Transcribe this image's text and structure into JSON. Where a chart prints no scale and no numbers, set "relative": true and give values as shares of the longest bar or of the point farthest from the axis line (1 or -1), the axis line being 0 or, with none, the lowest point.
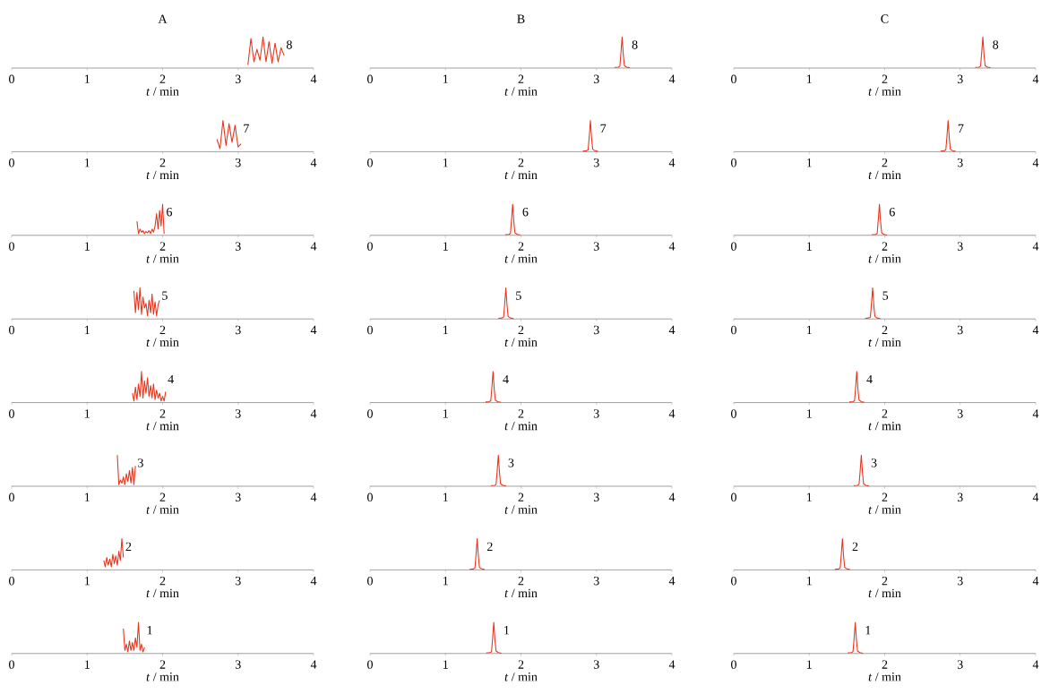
{
  "chart_data": [
    {
      "type": "line",
      "title": "A",
      "xlabel": "*t* / min",
      "relative": true,
      "color": "#e8341c",
      "xlim": [
        0,
        4
      ],
      "xticks": [
        0,
        1,
        2,
        3,
        4
      ],
      "x": [
        3.13,
        3.17,
        3.21,
        3.25,
        3.29,
        3.33,
        3.37,
        3.41,
        3.45,
        3.49,
        3.53,
        3.57,
        3.61
      ],
      "values": [
        0.1,
        0.95,
        0.2,
        0.6,
        0.25,
        1.0,
        0.2,
        0.85,
        0.15,
        0.8,
        0.2,
        0.65,
        0.4
      ],
      "annotations": [
        "8"
      ]
    },
    {
      "type": "line",
      "title": "B",
      "xlabel": "*t* / min",
      "relative": true,
      "color": "#e8341c",
      "xlim": [
        0,
        4
      ],
      "xticks": [
        0,
        1,
        2,
        3,
        4
      ],
      "x": [
        3.24,
        3.29,
        3.31,
        3.325,
        3.34,
        3.355,
        3.37,
        3.4,
        3.44
      ],
      "values": [
        0.02,
        0.03,
        0.06,
        0.5,
        1,
        0.45,
        0.08,
        0.03,
        0.01
      ],
      "annotations": [
        "8"
      ]
    },
    {
      "type": "line",
      "title": "C",
      "xlabel": "*t* / min",
      "relative": true,
      "color": "#e8341c",
      "xlim": [
        0,
        4
      ],
      "xticks": [
        0,
        1,
        2,
        3,
        4
      ],
      "x": [
        3.2,
        3.25,
        3.27,
        3.285,
        3.3,
        3.315,
        3.33,
        3.36,
        3.4
      ],
      "values": [
        0.02,
        0.03,
        0.06,
        0.5,
        1,
        0.45,
        0.08,
        0.03,
        0.01
      ],
      "annotations": [
        "8"
      ]
    },
    {
      "type": "line",
      "xlabel": "*t* / min",
      "relative": true,
      "color": "#e8341c",
      "xlim": [
        0,
        4
      ],
      "xticks": [
        0,
        1,
        2,
        3,
        4
      ],
      "x": [
        2.72,
        2.76,
        2.8,
        2.84,
        2.88,
        2.92,
        2.96,
        3.0,
        3.04
      ],
      "values": [
        0.4,
        0.1,
        1.0,
        0.2,
        0.9,
        0.3,
        0.85,
        0.15,
        0.25
      ],
      "annotations": [
        "7"
      ]
    },
    {
      "type": "line",
      "xlabel": "*t* / min",
      "relative": true,
      "color": "#e8341c",
      "xlim": [
        0,
        4
      ],
      "xticks": [
        0,
        1,
        2,
        3,
        4
      ],
      "x": [
        2.82,
        2.87,
        2.89,
        2.905,
        2.92,
        2.935,
        2.95,
        2.98,
        3.02
      ],
      "values": [
        0.02,
        0.03,
        0.06,
        0.5,
        1,
        0.45,
        0.08,
        0.03,
        0.01
      ],
      "annotations": [
        "7"
      ]
    },
    {
      "type": "line",
      "xlabel": "*t* / min",
      "relative": true,
      "color": "#e8341c",
      "xlim": [
        0,
        4
      ],
      "xticks": [
        0,
        1,
        2,
        3,
        4
      ],
      "x": [
        2.74,
        2.79,
        2.81,
        2.825,
        2.84,
        2.855,
        2.87,
        2.9,
        2.94
      ],
      "values": [
        0.02,
        0.03,
        0.06,
        0.5,
        1,
        0.45,
        0.08,
        0.03,
        0.01
      ],
      "annotations": [
        "7"
      ]
    },
    {
      "type": "line",
      "xlabel": "*t* / min",
      "relative": true,
      "color": "#e8341c",
      "xlim": [
        0,
        4
      ],
      "xticks": [
        0,
        1,
        2,
        3,
        4
      ],
      "x": [
        1.66,
        1.68,
        1.7,
        1.72,
        1.74,
        1.76,
        1.78,
        1.8,
        1.82,
        1.84,
        1.86,
        1.88,
        1.9,
        1.92,
        1.94,
        1.96,
        1.98,
        2.0,
        2.02
      ],
      "values": [
        0.45,
        0.05,
        0.2,
        0.1,
        0.15,
        0.05,
        0.12,
        0.08,
        0.15,
        0.06,
        0.2,
        0.1,
        0.3,
        0.7,
        0.2,
        0.8,
        0.3,
        1.0,
        0.05
      ],
      "annotations": [
        "6"
      ]
    },
    {
      "type": "line",
      "xlabel": "*t* / min",
      "relative": true,
      "color": "#e8341c",
      "xlim": [
        0,
        4
      ],
      "xticks": [
        0,
        1,
        2,
        3,
        4
      ],
      "x": [
        1.79,
        1.84,
        1.86,
        1.875,
        1.89,
        1.905,
        1.92,
        1.95,
        1.99
      ],
      "values": [
        0.02,
        0.03,
        0.06,
        0.5,
        1,
        0.45,
        0.08,
        0.03,
        0.01
      ],
      "annotations": [
        "6"
      ]
    },
    {
      "type": "line",
      "xlabel": "*t* / min",
      "relative": true,
      "color": "#e8341c",
      "xlim": [
        0,
        4
      ],
      "xticks": [
        0,
        1,
        2,
        3,
        4
      ],
      "x": [
        1.83,
        1.88,
        1.9,
        1.915,
        1.93,
        1.945,
        1.96,
        1.99,
        2.03
      ],
      "values": [
        0.02,
        0.03,
        0.06,
        0.5,
        1,
        0.45,
        0.08,
        0.03,
        0.01
      ],
      "annotations": [
        "6"
      ]
    },
    {
      "type": "line",
      "xlabel": "*t* / min",
      "relative": true,
      "color": "#e8341c",
      "xlim": [
        0,
        4
      ],
      "xticks": [
        0,
        1,
        2,
        3,
        4
      ],
      "x": [
        1.62,
        1.64,
        1.66,
        1.68,
        1.7,
        1.72,
        1.74,
        1.76,
        1.78,
        1.8,
        1.82,
        1.84,
        1.86,
        1.88,
        1.9,
        1.92,
        1.94,
        1.96
      ],
      "values": [
        0.9,
        0.2,
        0.85,
        0.3,
        1.0,
        0.15,
        0.7,
        0.35,
        0.5,
        0.1,
        0.6,
        0.2,
        0.8,
        0.15,
        0.55,
        0.1,
        0.45,
        0.6
      ],
      "annotations": [
        "5"
      ]
    },
    {
      "type": "line",
      "xlabel": "*t* / min",
      "relative": true,
      "color": "#e8341c",
      "xlim": [
        0,
        4
      ],
      "xticks": [
        0,
        1,
        2,
        3,
        4
      ],
      "x": [
        1.7,
        1.75,
        1.77,
        1.785,
        1.8,
        1.815,
        1.83,
        1.86,
        1.9
      ],
      "values": [
        0.02,
        0.03,
        0.06,
        0.5,
        1,
        0.45,
        0.08,
        0.03,
        0.01
      ],
      "annotations": [
        "5"
      ]
    },
    {
      "type": "line",
      "xlabel": "*t* / min",
      "relative": true,
      "color": "#e8341c",
      "xlim": [
        0,
        4
      ],
      "xticks": [
        0,
        1,
        2,
        3,
        4
      ],
      "x": [
        1.74,
        1.79,
        1.81,
        1.825,
        1.84,
        1.855,
        1.87,
        1.9,
        1.94
      ],
      "values": [
        0.02,
        0.03,
        0.06,
        0.5,
        1,
        0.45,
        0.08,
        0.03,
        0.01
      ],
      "annotations": [
        "5"
      ]
    },
    {
      "type": "line",
      "xlabel": "*t* / min",
      "relative": true,
      "color": "#e8341c",
      "xlim": [
        0,
        4
      ],
      "xticks": [
        0,
        1,
        2,
        3,
        4
      ],
      "x": [
        1.6,
        1.62,
        1.64,
        1.66,
        1.68,
        1.7,
        1.72,
        1.74,
        1.76,
        1.78,
        1.8,
        1.82,
        1.84,
        1.86,
        1.88,
        1.9,
        1.92,
        1.94,
        1.96,
        1.98,
        2.0,
        2.02,
        2.04
      ],
      "values": [
        0.3,
        0.05,
        0.5,
        0.1,
        0.6,
        0.2,
        1.0,
        0.15,
        0.7,
        0.3,
        0.8,
        0.2,
        0.55,
        0.15,
        0.6,
        0.1,
        0.4,
        0.15,
        0.3,
        0.05,
        0.2,
        0.05,
        0.35
      ],
      "annotations": [
        "4"
      ]
    },
    {
      "type": "line",
      "xlabel": "*t* / min",
      "relative": true,
      "color": "#e8341c",
      "xlim": [
        0,
        4
      ],
      "xticks": [
        0,
        1,
        2,
        3,
        4
      ],
      "x": [
        1.53,
        1.58,
        1.6,
        1.615,
        1.63,
        1.645,
        1.66,
        1.69,
        1.73
      ],
      "values": [
        0.02,
        0.03,
        0.06,
        0.5,
        1,
        0.45,
        0.08,
        0.03,
        0.01
      ],
      "annotations": [
        "4"
      ]
    },
    {
      "type": "line",
      "xlabel": "*t* / min",
      "relative": true,
      "color": "#e8341c",
      "xlim": [
        0,
        4
      ],
      "xticks": [
        0,
        1,
        2,
        3,
        4
      ],
      "x": [
        1.53,
        1.58,
        1.6,
        1.615,
        1.63,
        1.645,
        1.66,
        1.69,
        1.73
      ],
      "values": [
        0.02,
        0.03,
        0.06,
        0.5,
        1,
        0.45,
        0.08,
        0.03,
        0.01
      ],
      "annotations": [
        "4"
      ]
    },
    {
      "type": "line",
      "xlabel": "*t* / min",
      "relative": true,
      "color": "#e8341c",
      "xlim": [
        0,
        4
      ],
      "xticks": [
        0,
        1,
        2,
        3,
        4
      ],
      "x": [
        1.4,
        1.42,
        1.44,
        1.46,
        1.48,
        1.5,
        1.52,
        1.54,
        1.56,
        1.58,
        1.6,
        1.62,
        1.64
      ],
      "values": [
        1.0,
        0.05,
        0.2,
        0.1,
        0.3,
        0.05,
        0.4,
        0.15,
        0.5,
        0.1,
        0.6,
        0.05,
        0.65
      ],
      "annotations": [
        "3"
      ]
    },
    {
      "type": "line",
      "xlabel": "*t* / min",
      "relative": true,
      "color": "#e8341c",
      "xlim": [
        0,
        4
      ],
      "xticks": [
        0,
        1,
        2,
        3,
        4
      ],
      "x": [
        1.6,
        1.65,
        1.67,
        1.685,
        1.7,
        1.715,
        1.73,
        1.76,
        1.8
      ],
      "values": [
        0.02,
        0.03,
        0.06,
        0.5,
        1,
        0.45,
        0.08,
        0.03,
        0.01
      ],
      "annotations": [
        "3"
      ]
    },
    {
      "type": "line",
      "xlabel": "*t* / min",
      "relative": true,
      "color": "#e8341c",
      "xlim": [
        0,
        4
      ],
      "xticks": [
        0,
        1,
        2,
        3,
        4
      ],
      "x": [
        1.59,
        1.64,
        1.66,
        1.675,
        1.69,
        1.705,
        1.72,
        1.75,
        1.79
      ],
      "values": [
        0.02,
        0.03,
        0.06,
        0.5,
        1,
        0.45,
        0.08,
        0.03,
        0.01
      ],
      "annotations": [
        "3"
      ]
    },
    {
      "type": "line",
      "xlabel": "*t* / min",
      "relative": true,
      "color": "#e8341c",
      "xlim": [
        0,
        4
      ],
      "xticks": [
        0,
        1,
        2,
        3,
        4
      ],
      "x": [
        1.22,
        1.24,
        1.26,
        1.28,
        1.3,
        1.32,
        1.34,
        1.36,
        1.38,
        1.4,
        1.42,
        1.44,
        1.46,
        1.48
      ],
      "values": [
        0.3,
        0.1,
        0.4,
        0.15,
        0.35,
        0.1,
        0.5,
        0.2,
        0.45,
        0.15,
        0.6,
        0.3,
        1.0,
        0.4
      ],
      "annotations": [
        "2"
      ]
    },
    {
      "type": "line",
      "xlabel": "*t* / min",
      "relative": true,
      "color": "#e8341c",
      "xlim": [
        0,
        4
      ],
      "xticks": [
        0,
        1,
        2,
        3,
        4
      ],
      "x": [
        1.32,
        1.37,
        1.39,
        1.405,
        1.42,
        1.435,
        1.45,
        1.48,
        1.52
      ],
      "values": [
        0.02,
        0.03,
        0.06,
        0.5,
        1,
        0.45,
        0.08,
        0.03,
        0.01
      ],
      "annotations": [
        "2"
      ]
    },
    {
      "type": "line",
      "xlabel": "*t* / min",
      "relative": true,
      "color": "#e8341c",
      "xlim": [
        0,
        4
      ],
      "xticks": [
        0,
        1,
        2,
        3,
        4
      ],
      "x": [
        1.34,
        1.39,
        1.41,
        1.425,
        1.44,
        1.455,
        1.47,
        1.5,
        1.54
      ],
      "values": [
        0.02,
        0.03,
        0.06,
        0.5,
        1,
        0.45,
        0.08,
        0.03,
        0.01
      ],
      "annotations": [
        "2"
      ]
    },
    {
      "type": "line",
      "xlabel": "*t* / min",
      "relative": true,
      "color": "#e8341c",
      "xlim": [
        0,
        4
      ],
      "xticks": [
        0,
        1,
        2,
        3,
        4
      ],
      "x": [
        1.48,
        1.5,
        1.52,
        1.54,
        1.56,
        1.58,
        1.6,
        1.62,
        1.64,
        1.66,
        1.68,
        1.7,
        1.72,
        1.74,
        1.76
      ],
      "values": [
        0.8,
        0.1,
        0.3,
        0.05,
        0.4,
        0.1,
        0.35,
        0.1,
        0.5,
        0.2,
        1.0,
        0.1,
        0.3,
        0.05,
        0.2
      ],
      "annotations": [
        "1"
      ]
    },
    {
      "type": "line",
      "xlabel": "*t* / min",
      "relative": true,
      "color": "#e8341c",
      "xlim": [
        0,
        4
      ],
      "xticks": [
        0,
        1,
        2,
        3,
        4
      ],
      "x": [
        1.54,
        1.59,
        1.61,
        1.625,
        1.64,
        1.655,
        1.67,
        1.7,
        1.74
      ],
      "values": [
        0.02,
        0.03,
        0.06,
        0.5,
        1,
        0.45,
        0.08,
        0.03,
        0.01
      ],
      "annotations": [
        "1"
      ]
    },
    {
      "type": "line",
      "xlabel": "*t* / min",
      "relative": true,
      "color": "#e8341c",
      "xlim": [
        0,
        4
      ],
      "xticks": [
        0,
        1,
        2,
        3,
        4
      ],
      "x": [
        1.51,
        1.56,
        1.58,
        1.595,
        1.61,
        1.625,
        1.64,
        1.67,
        1.71
      ],
      "values": [
        0.02,
        0.03,
        0.06,
        0.5,
        1,
        0.45,
        0.08,
        0.03,
        0.01
      ],
      "annotations": [
        "1"
      ]
    }
  ]
}
